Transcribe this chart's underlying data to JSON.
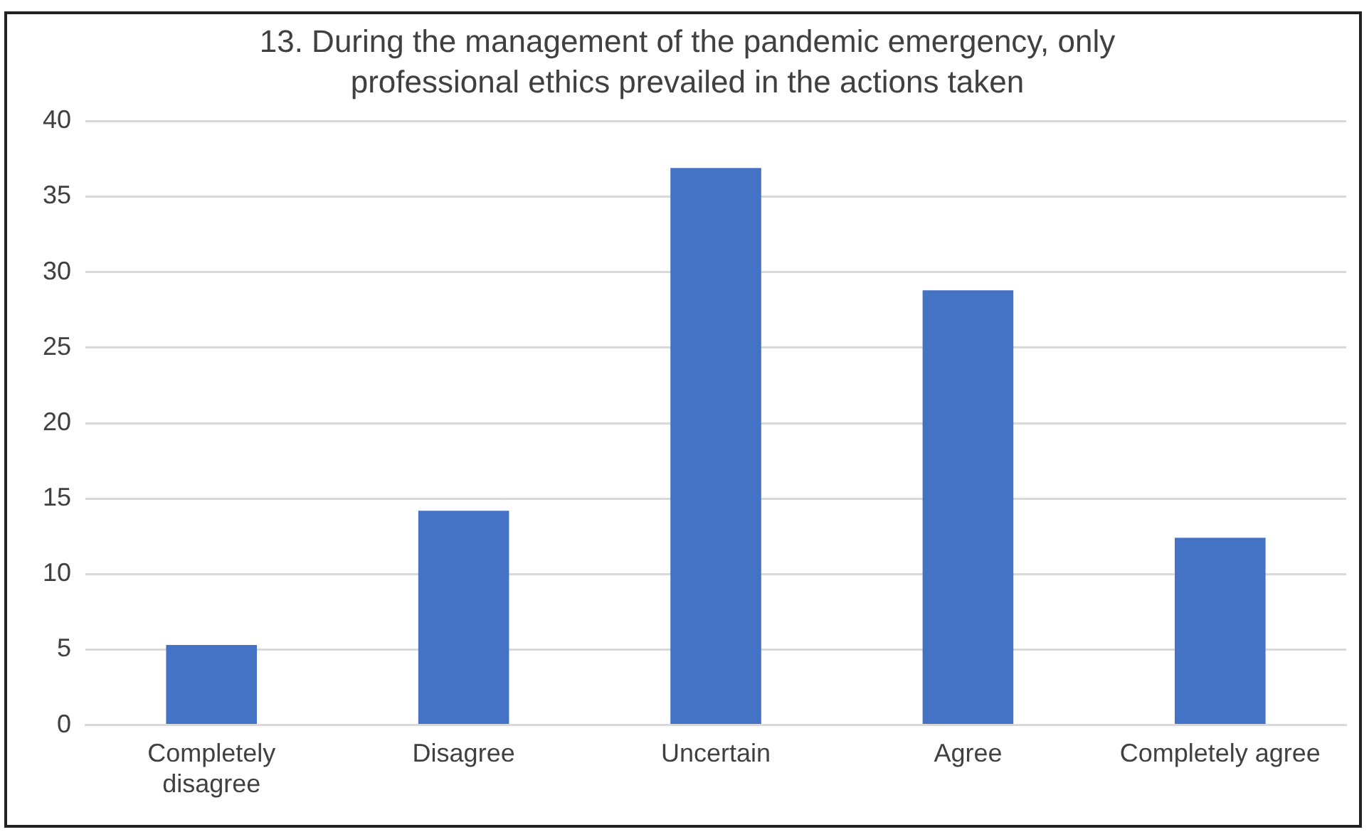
{
  "chart_data": {
    "type": "bar",
    "title": "13. During the management of the pandemic emergency, only professional ethics prevailed in the actions taken",
    "categories": [
      "Completely disagree",
      "Disagree",
      "Uncertain",
      "Agree",
      "Completely agree"
    ],
    "values": [
      5.3,
      14.2,
      36.9,
      28.8,
      12.4
    ],
    "color": "#4472c4",
    "ylim": [
      0,
      40
    ],
    "yticks": [
      0,
      5,
      10,
      15,
      20,
      25,
      30,
      35,
      40
    ],
    "grid": "y",
    "legend": false
  }
}
